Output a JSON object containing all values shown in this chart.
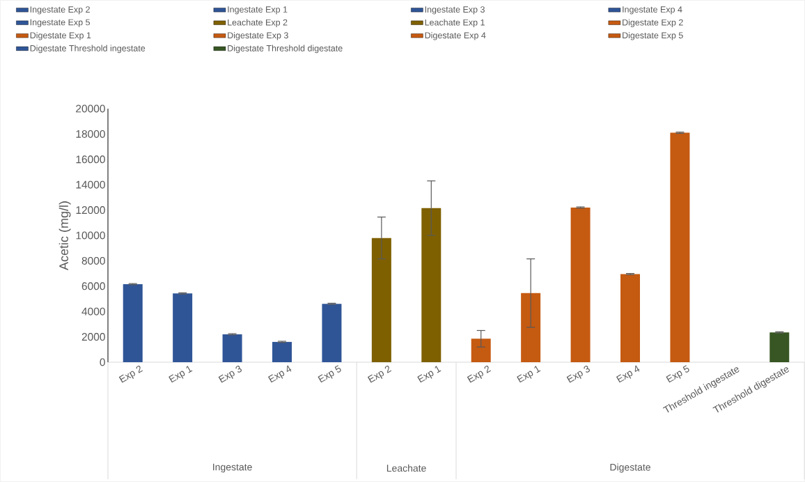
{
  "chart_data": {
    "type": "bar",
    "ylabel": "Acetic (mg/l)",
    "ylim": [
      0,
      20000
    ],
    "yticks": [
      0,
      2000,
      4000,
      6000,
      8000,
      10000,
      12000,
      14000,
      16000,
      18000,
      20000
    ],
    "legend": "top",
    "categories": [
      "Exp 2",
      "Exp 1",
      "Exp 3",
      "Exp 4",
      "Exp 5",
      "Exp 2",
      "Exp 1",
      "Exp 2",
      "Exp 1",
      "Exp 3",
      "Exp 4",
      "Exp 5",
      "Threshold ingestate",
      "Threshold digestate"
    ],
    "annotations": [
      "Ingestate",
      "Leachate",
      "Digestate"
    ],
    "series": [
      {
        "name": "Ingestate Exp 2",
        "color": "#2f5597",
        "values": [
          6150,
          null,
          null,
          null,
          null,
          null,
          null,
          null,
          null,
          null,
          null,
          null,
          null,
          null
        ],
        "errors": [
          50,
          null,
          null,
          null,
          null,
          null,
          null,
          null,
          null,
          null,
          null,
          null,
          null,
          null
        ]
      },
      {
        "name": "Ingestate Exp 1",
        "color": "#2f5597",
        "values": [
          null,
          5420,
          null,
          null,
          null,
          null,
          null,
          null,
          null,
          null,
          null,
          null,
          null,
          null
        ],
        "errors": [
          null,
          50,
          null,
          null,
          null,
          null,
          null,
          null,
          null,
          null,
          null,
          null,
          null,
          null
        ]
      },
      {
        "name": "Ingestate Exp 3",
        "color": "#2f5597",
        "values": [
          null,
          null,
          2200,
          null,
          null,
          null,
          null,
          null,
          null,
          null,
          null,
          null,
          null,
          null
        ],
        "errors": [
          null,
          null,
          50,
          null,
          null,
          null,
          null,
          null,
          null,
          null,
          null,
          null,
          null,
          null
        ]
      },
      {
        "name": "Ingestate Exp 4",
        "color": "#2f5597",
        "values": [
          null,
          null,
          null,
          1600,
          null,
          null,
          null,
          null,
          null,
          null,
          null,
          null,
          null,
          null
        ],
        "errors": [
          null,
          null,
          null,
          50,
          null,
          null,
          null,
          null,
          null,
          null,
          null,
          null,
          null,
          null
        ]
      },
      {
        "name": "Ingestate Exp 5",
        "color": "#2f5597",
        "values": [
          null,
          null,
          null,
          null,
          4600,
          null,
          null,
          null,
          null,
          null,
          null,
          null,
          null,
          null
        ],
        "errors": [
          null,
          null,
          null,
          null,
          50,
          null,
          null,
          null,
          null,
          null,
          null,
          null,
          null,
          null
        ]
      },
      {
        "name": "Leachate Exp 2",
        "color": "#7f6000",
        "values": [
          null,
          null,
          null,
          null,
          null,
          9800,
          null,
          null,
          null,
          null,
          null,
          null,
          null,
          null
        ],
        "errors": [
          null,
          null,
          null,
          null,
          null,
          1650,
          null,
          null,
          null,
          null,
          null,
          null,
          null,
          null
        ]
      },
      {
        "name": "Leachate Exp 1",
        "color": "#7f6000",
        "values": [
          null,
          null,
          null,
          null,
          null,
          null,
          12150,
          null,
          null,
          null,
          null,
          null,
          null,
          null
        ],
        "errors": [
          null,
          null,
          null,
          null,
          null,
          null,
          2150,
          null,
          null,
          null,
          null,
          null,
          null,
          null
        ]
      },
      {
        "name": "Digestate Exp 2",
        "color": "#c55a11",
        "values": [
          null,
          null,
          null,
          null,
          null,
          null,
          null,
          1850,
          null,
          null,
          null,
          null,
          null,
          null
        ],
        "errors": [
          null,
          null,
          null,
          null,
          null,
          null,
          null,
          650,
          null,
          null,
          null,
          null,
          null,
          null
        ]
      },
      {
        "name": "Digestate Exp 1",
        "color": "#c55a11",
        "values": [
          null,
          null,
          null,
          null,
          null,
          null,
          null,
          null,
          5450,
          null,
          null,
          null,
          null,
          null
        ],
        "errors": [
          null,
          null,
          null,
          null,
          null,
          null,
          null,
          null,
          2700,
          null,
          null,
          null,
          null,
          null
        ]
      },
      {
        "name": "Digestate Exp 3",
        "color": "#c55a11",
        "values": [
          null,
          null,
          null,
          null,
          null,
          null,
          null,
          null,
          null,
          12200,
          null,
          null,
          null,
          null
        ],
        "errors": [
          null,
          null,
          null,
          null,
          null,
          null,
          null,
          null,
          null,
          50,
          null,
          null,
          null,
          null
        ]
      },
      {
        "name": "Digestate Exp 4",
        "color": "#c55a11",
        "values": [
          null,
          null,
          null,
          null,
          null,
          null,
          null,
          null,
          null,
          null,
          6950,
          null,
          null,
          null
        ],
        "errors": [
          null,
          null,
          null,
          null,
          null,
          null,
          null,
          null,
          null,
          null,
          50,
          null,
          null,
          null
        ]
      },
      {
        "name": "Digestate Exp 5",
        "color": "#c55a11",
        "values": [
          null,
          null,
          null,
          null,
          null,
          null,
          null,
          null,
          null,
          null,
          null,
          18100,
          null,
          null
        ],
        "errors": [
          null,
          null,
          null,
          null,
          null,
          null,
          null,
          null,
          null,
          null,
          null,
          50,
          null,
          null
        ]
      },
      {
        "name": "Digestate Threshold ingestate",
        "color": "#2f5597",
        "values": [
          null,
          null,
          null,
          null,
          null,
          null,
          null,
          null,
          null,
          null,
          null,
          null,
          null,
          null
        ]
      },
      {
        "name": "Digestate Threshold digestate",
        "color": "#375623",
        "values": [
          null,
          null,
          null,
          null,
          null,
          null,
          null,
          null,
          null,
          null,
          null,
          null,
          null,
          2350
        ],
        "errors": [
          null,
          null,
          null,
          null,
          null,
          null,
          null,
          null,
          null,
          null,
          null,
          null,
          null,
          50
        ]
      }
    ]
  }
}
